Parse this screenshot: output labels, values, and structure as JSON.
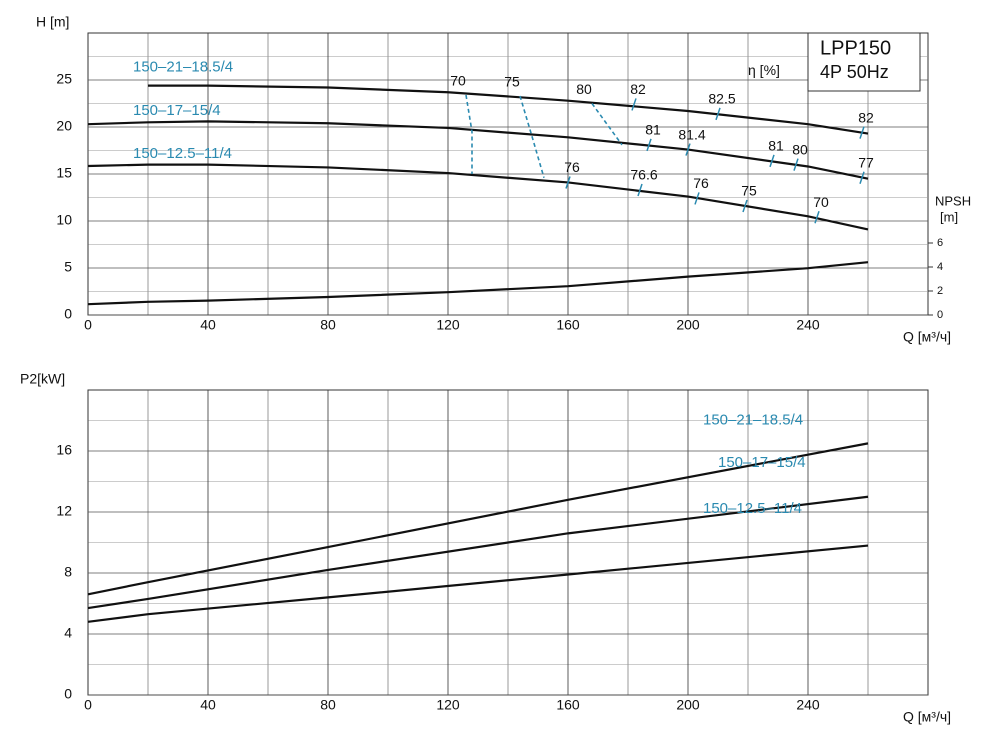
{
  "chart_data": [
    {
      "type": "line",
      "title": "LPP150",
      "subtitle": "4P 50Hz",
      "y_label": "H [m]",
      "x_label": "Q [м³/ч]",
      "y2_label": "NPSH",
      "y2_unit": "[m]",
      "eta_label": "η [%]",
      "x": [
        0,
        20,
        40,
        80,
        120,
        160,
        200,
        240,
        260
      ],
      "xlim": [
        0,
        280
      ],
      "xticks": [
        0,
        40,
        80,
        120,
        160,
        200,
        240
      ],
      "ylim": [
        0,
        30
      ],
      "yticks": [
        0,
        5,
        10,
        15,
        20,
        25
      ],
      "y2lim": [
        0,
        23.5
      ],
      "y2ticks": [
        0,
        2,
        4,
        6
      ],
      "grid": true,
      "series": [
        {
          "name": "150–21–18.5/4",
          "color": "#111111",
          "values": [
            null,
            24.4,
            24.4,
            24.2,
            23.7,
            22.8,
            21.7,
            20.3,
            19.3
          ]
        },
        {
          "name": "150–17–15/4",
          "color": "#111111",
          "values": [
            20.3,
            20.5,
            20.6,
            20.4,
            19.9,
            18.9,
            17.6,
            15.8,
            14.5
          ]
        },
        {
          "name": "150–12.5–11/4",
          "color": "#111111",
          "values": [
            15.85,
            16.0,
            16.0,
            15.7,
            15.1,
            14.1,
            12.6,
            10.5,
            9.1
          ]
        },
        {
          "name": "NPSH",
          "axis": "y2",
          "color": "#111111",
          "values": [
            0.9,
            1.1,
            1.2,
            1.5,
            1.9,
            2.4,
            3.2,
            3.9,
            4.4
          ]
        }
      ],
      "eta_color": "#2a8ab0",
      "eta_lines": [
        {
          "value": 70,
          "x": [
            126,
            128,
            128
          ],
          "y": [
            23.4,
            19.5,
            15.0
          ]
        },
        {
          "value": 75,
          "x": [
            144,
            148,
            152
          ],
          "y": [
            23.3,
            19.0,
            14.6
          ]
        },
        {
          "value": 80,
          "x": [
            168,
            173,
            178
          ],
          "y": [
            22.5,
            20.3,
            18.1
          ]
        }
      ],
      "eta_marks": [
        {
          "value": 82,
          "x": 182,
          "y": 22.4
        },
        {
          "value": 82.5,
          "x": 210,
          "y": 21.4
        },
        {
          "value": 82,
          "x": 258,
          "y": 19.4
        },
        {
          "value": 81,
          "x": 187,
          "y": 18.1
        },
        {
          "value": 81.4,
          "x": 200,
          "y": 17.6
        },
        {
          "value": 81,
          "x": 228,
          "y": 16.4
        },
        {
          "value": 80,
          "x": 236,
          "y": 16.0
        },
        {
          "value": 77,
          "x": 258,
          "y": 14.6
        },
        {
          "value": 76,
          "x": 160,
          "y": 14.1
        },
        {
          "value": 76.6,
          "x": 184,
          "y": 13.3
        },
        {
          "value": 76,
          "x": 203,
          "y": 12.4
        },
        {
          "value": 75,
          "x": 219,
          "y": 11.6
        },
        {
          "value": 70,
          "x": 243,
          "y": 10.4
        }
      ]
    },
    {
      "type": "line",
      "y_label": "P2[kW]",
      "x_label": "Q [м³/ч]",
      "x": [
        0,
        20,
        80,
        160,
        260
      ],
      "xlim": [
        0,
        280
      ],
      "xticks": [
        0,
        40,
        80,
        120,
        160,
        200,
        240
      ],
      "ylim": [
        0,
        20
      ],
      "yticks": [
        0,
        4,
        8,
        12,
        16
      ],
      "grid": true,
      "series": [
        {
          "name": "150–21–18.5/4",
          "color": "#111111",
          "values": [
            6.6,
            7.4,
            9.7,
            12.8,
            16.5
          ]
        },
        {
          "name": "150–17–15/4",
          "color": "#111111",
          "values": [
            5.7,
            6.3,
            8.2,
            10.6,
            13.0
          ]
        },
        {
          "name": "150–12.5–11/4",
          "color": "#111111",
          "values": [
            4.8,
            5.3,
            6.4,
            7.9,
            9.8
          ]
        }
      ]
    }
  ]
}
